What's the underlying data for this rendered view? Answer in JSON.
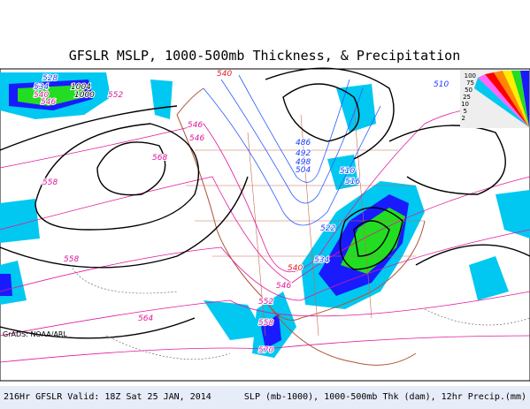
{
  "title": "GFSLR MSLP, 1000-500mb Thickness, & Precipitation",
  "footer": {
    "left": "216Hr GFSLR Valid: 18Z Sat 25 JAN, 2014",
    "right": "SLP (mb-1000), 1000-500mb Thk (dam), 12hr Precip.(mm)"
  },
  "credit": "GrADS: NOAA/ARL",
  "legend": {
    "labels": [
      100,
      75,
      50,
      25,
      10,
      5,
      2
    ]
  },
  "contour_labels": [
    528,
    534,
    540,
    546,
    1004,
    1000,
    552,
    540,
    546,
    546,
    568,
    558,
    558,
    486,
    492,
    498,
    504,
    510,
    516,
    510,
    522,
    534,
    540,
    546,
    552,
    558,
    564,
    570
  ]
}
